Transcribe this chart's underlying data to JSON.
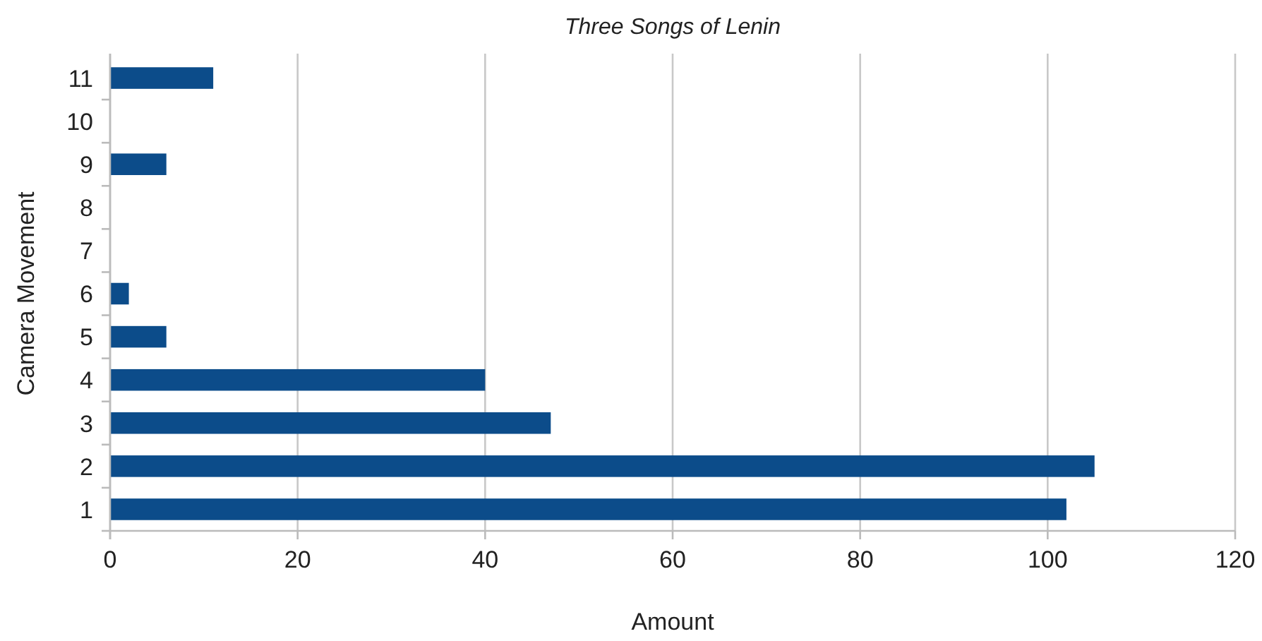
{
  "chart_data": {
    "type": "bar",
    "orientation": "horizontal",
    "title": "Three Songs of Lenin",
    "xlabel": "Amount",
    "ylabel": "Camera Movement",
    "categories": [
      "11",
      "10",
      "9",
      "8",
      "7",
      "6",
      "5",
      "4",
      "3",
      "2",
      "1"
    ],
    "values": [
      11,
      0,
      6,
      0,
      0,
      2,
      6,
      40,
      47,
      105,
      102
    ],
    "color": "#0c4c8a",
    "xlim": [
      0,
      120
    ],
    "xticks": [
      0,
      20,
      40,
      60,
      80,
      100,
      120
    ],
    "grid": "x"
  }
}
